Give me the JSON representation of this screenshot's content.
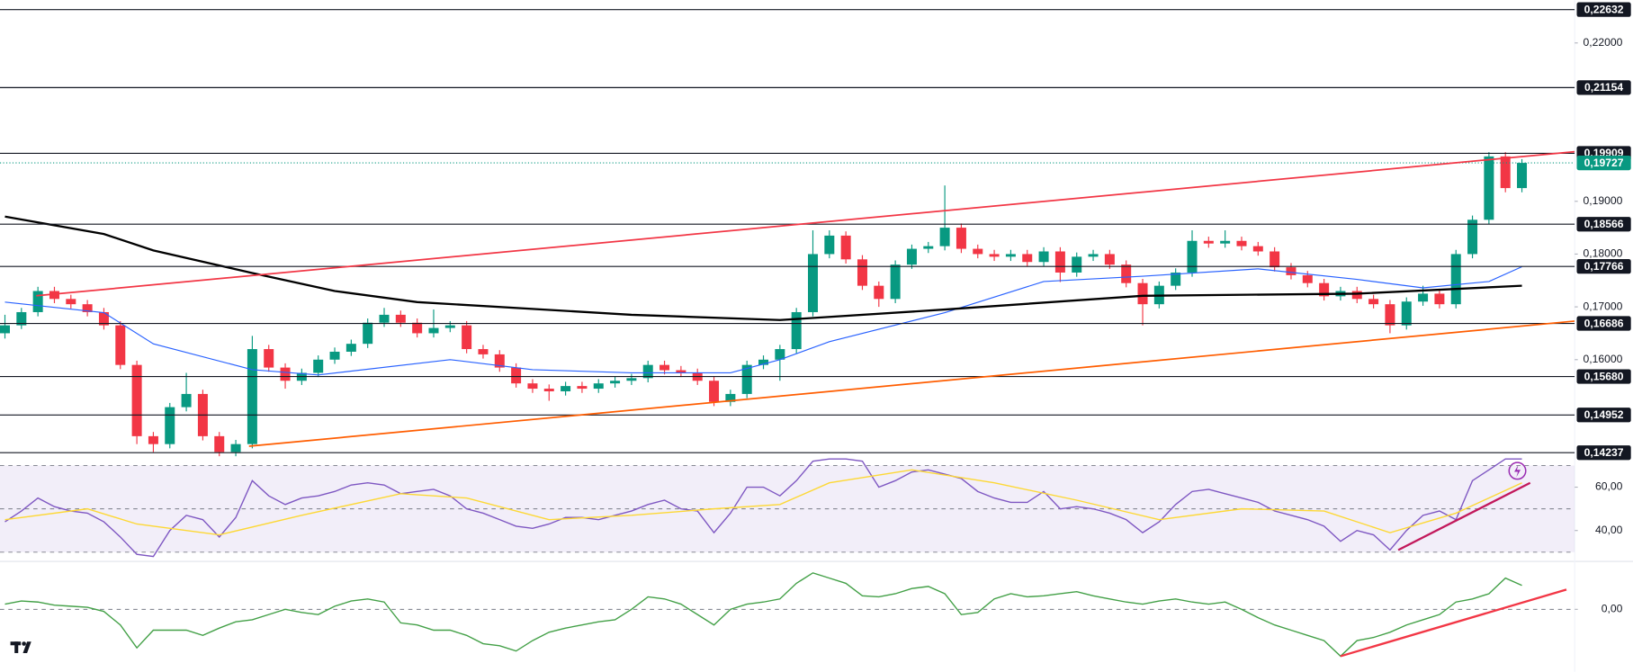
{
  "chart_data": [
    {
      "type": "candlestick",
      "xlim": [
        -0.3,
        95.2
      ],
      "ylim": [
        0.1413,
        0.2281
      ],
      "yticks": [
        {
          "value": 0.16,
          "label": "0,16000"
        },
        {
          "value": 0.17,
          "label": "0,17000"
        },
        {
          "value": 0.18,
          "label": "0,18000"
        },
        {
          "value": 0.19,
          "label": "0,19000"
        },
        {
          "value": 0.22,
          "label": "0,22000"
        }
      ],
      "up_color": "#089981",
      "down_color": "#f23645",
      "ohlc": [
        [
          0.165,
          0.1685,
          0.164,
          0.1665
        ],
        [
          0.1665,
          0.1698,
          0.1658,
          0.169
        ],
        [
          0.169,
          0.1738,
          0.1682,
          0.173
        ],
        [
          0.173,
          0.1738,
          0.1707,
          0.1715
        ],
        [
          0.1715,
          0.1723,
          0.1697,
          0.1705
        ],
        [
          0.1705,
          0.1713,
          0.1682,
          0.169
        ],
        [
          0.169,
          0.1698,
          0.1657,
          0.1665
        ],
        [
          0.1665,
          0.1673,
          0.1582,
          0.159
        ],
        [
          0.159,
          0.1598,
          0.144,
          0.1455
        ],
        [
          0.1455,
          0.1463,
          0.1425,
          0.144
        ],
        [
          0.144,
          0.1518,
          0.1432,
          0.151
        ],
        [
          0.151,
          0.1575,
          0.1502,
          0.1535
        ],
        [
          0.1535,
          0.1543,
          0.1447,
          0.1455
        ],
        [
          0.1455,
          0.1463,
          0.1417,
          0.1425
        ],
        [
          0.1425,
          0.1448,
          0.1417,
          0.144
        ],
        [
          0.144,
          0.1645,
          0.1432,
          0.162
        ],
        [
          0.162,
          0.1628,
          0.1577,
          0.1585
        ],
        [
          0.1585,
          0.1593,
          0.1545,
          0.156
        ],
        [
          0.156,
          0.1583,
          0.1552,
          0.1575
        ],
        [
          0.1575,
          0.1608,
          0.1567,
          0.16
        ],
        [
          0.16,
          0.1623,
          0.1592,
          0.1615
        ],
        [
          0.1615,
          0.1638,
          0.1607,
          0.163
        ],
        [
          0.163,
          0.1678,
          0.1622,
          0.167
        ],
        [
          0.167,
          0.1698,
          0.1662,
          0.1685
        ],
        [
          0.1685,
          0.1693,
          0.1662,
          0.167
        ],
        [
          0.167,
          0.1678,
          0.1642,
          0.165
        ],
        [
          0.165,
          0.1695,
          0.1642,
          0.166
        ],
        [
          0.166,
          0.1673,
          0.1652,
          0.1665
        ],
        [
          0.1665,
          0.1673,
          0.1612,
          0.162
        ],
        [
          0.162,
          0.1628,
          0.1602,
          0.161
        ],
        [
          0.161,
          0.1618,
          0.1577,
          0.1585
        ],
        [
          0.1585,
          0.1593,
          0.1547,
          0.1555
        ],
        [
          0.1555,
          0.1563,
          0.1537,
          0.1545
        ],
        [
          0.1545,
          0.1553,
          0.1522,
          0.154
        ],
        [
          0.154,
          0.1558,
          0.1532,
          0.155
        ],
        [
          0.155,
          0.1558,
          0.1537,
          0.1545
        ],
        [
          0.1545,
          0.1563,
          0.1537,
          0.1555
        ],
        [
          0.1555,
          0.1568,
          0.1547,
          0.156
        ],
        [
          0.156,
          0.1573,
          0.1552,
          0.1565
        ],
        [
          0.1565,
          0.1598,
          0.1557,
          0.159
        ],
        [
          0.159,
          0.1598,
          0.1572,
          0.158
        ],
        [
          0.158,
          0.1588,
          0.1567,
          0.1575
        ],
        [
          0.1575,
          0.1583,
          0.1552,
          0.156
        ],
        [
          0.156,
          0.1568,
          0.1512,
          0.152
        ],
        [
          0.152,
          0.1543,
          0.1512,
          0.1535
        ],
        [
          0.1535,
          0.1598,
          0.1527,
          0.159
        ],
        [
          0.159,
          0.1608,
          0.1582,
          0.16
        ],
        [
          0.16,
          0.1628,
          0.156,
          0.162
        ],
        [
          0.162,
          0.1698,
          0.1612,
          0.169
        ],
        [
          0.169,
          0.1845,
          0.1682,
          0.18
        ],
        [
          0.18,
          0.1845,
          0.1792,
          0.1835
        ],
        [
          0.1835,
          0.1843,
          0.1782,
          0.179
        ],
        [
          0.179,
          0.1798,
          0.1732,
          0.174
        ],
        [
          0.174,
          0.1748,
          0.17,
          0.1715
        ],
        [
          0.1715,
          0.1788,
          0.1707,
          0.178
        ],
        [
          0.178,
          0.1818,
          0.1772,
          0.181
        ],
        [
          0.181,
          0.1823,
          0.1802,
          0.1815
        ],
        [
          0.1815,
          0.193,
          0.1807,
          0.185
        ],
        [
          0.185,
          0.1858,
          0.1802,
          0.181
        ],
        [
          0.181,
          0.1818,
          0.1792,
          0.18
        ],
        [
          0.18,
          0.1808,
          0.1787,
          0.1795
        ],
        [
          0.1795,
          0.1808,
          0.1787,
          0.18
        ],
        [
          0.18,
          0.1808,
          0.1777,
          0.1785
        ],
        [
          0.1785,
          0.1813,
          0.1777,
          0.1805
        ],
        [
          0.1805,
          0.1813,
          0.1747,
          0.1765
        ],
        [
          0.1765,
          0.1803,
          0.1757,
          0.1795
        ],
        [
          0.1795,
          0.1808,
          0.1787,
          0.18
        ],
        [
          0.18,
          0.1808,
          0.1772,
          0.178
        ],
        [
          0.178,
          0.1788,
          0.1737,
          0.1745
        ],
        [
          0.1745,
          0.1753,
          0.1665,
          0.1705
        ],
        [
          0.1705,
          0.1748,
          0.1697,
          0.174
        ],
        [
          0.174,
          0.1773,
          0.1732,
          0.1765
        ],
        [
          0.1765,
          0.1845,
          0.1757,
          0.1825
        ],
        [
          0.1825,
          0.1833,
          0.1812,
          0.182
        ],
        [
          0.182,
          0.1845,
          0.1812,
          0.1825
        ],
        [
          0.1825,
          0.1833,
          0.1807,
          0.1815
        ],
        [
          0.1815,
          0.1823,
          0.1797,
          0.1805
        ],
        [
          0.1805,
          0.1813,
          0.1767,
          0.1775
        ],
        [
          0.1775,
          0.1783,
          0.1752,
          0.176
        ],
        [
          0.176,
          0.1768,
          0.1737,
          0.1745
        ],
        [
          0.1745,
          0.1753,
          0.1712,
          0.172
        ],
        [
          0.172,
          0.1738,
          0.1712,
          0.173
        ],
        [
          0.173,
          0.1738,
          0.1707,
          0.1715
        ],
        [
          0.1715,
          0.1723,
          0.1697,
          0.1705
        ],
        [
          0.1705,
          0.1713,
          0.165,
          0.1665
        ],
        [
          0.1665,
          0.1718,
          0.1657,
          0.171
        ],
        [
          0.171,
          0.174,
          0.1702,
          0.1725
        ],
        [
          0.1725,
          0.1733,
          0.1697,
          0.1705
        ],
        [
          0.1705,
          0.1808,
          0.1697,
          0.18
        ],
        [
          0.18,
          0.1873,
          0.1792,
          0.1865
        ],
        [
          0.1865,
          0.1993,
          0.1857,
          0.1985
        ],
        [
          0.1985,
          0.1993,
          0.1917,
          0.1925
        ],
        [
          0.1925,
          0.198,
          0.1917,
          0.19727
        ]
      ],
      "lines": [
        {
          "color": "#2962ff",
          "x": [
            0,
            6,
            9,
            15,
            19,
            27,
            32,
            38,
            44,
            47,
            50,
            57,
            63,
            69,
            76,
            82,
            86,
            90,
            92
          ],
          "values": [
            0.1709,
            0.1689,
            0.163,
            0.1581,
            0.1571,
            0.16,
            0.1581,
            0.1575,
            0.1575,
            0.16,
            0.1634,
            0.1689,
            0.1748,
            0.1758,
            0.1772,
            0.1752,
            0.1736,
            0.1748,
            0.1776
          ]
        },
        {
          "color": "#000000",
          "x": [
            0,
            6,
            9,
            15,
            20,
            25,
            38,
            47,
            57,
            69,
            82,
            92
          ],
          "values": [
            0.1871,
            0.1838,
            0.1807,
            0.1764,
            0.173,
            0.1709,
            0.1685,
            0.1675,
            0.1695,
            0.1721,
            0.1725,
            0.174
          ]
        }
      ],
      "trendlines": [
        {
          "color": "#f23645",
          "x": [
            1.9,
            95.2
          ],
          "values": [
            0.1721,
            0.1994
          ]
        },
        {
          "color": "#ff5d00",
          "x": [
            14.8,
            95.2
          ],
          "values": [
            0.1436,
            0.1673
          ]
        }
      ],
      "levels": [
        {
          "value": 0.22632,
          "label": "0,22632"
        },
        {
          "value": 0.21154,
          "label": "0,21154"
        },
        {
          "value": 0.19909,
          "label": "0,19909"
        },
        {
          "value": 0.18566,
          "label": "0,18566"
        },
        {
          "value": 0.17766,
          "label": "0,17766"
        },
        {
          "value": 0.16686,
          "label": "0,16686"
        },
        {
          "value": 0.1568,
          "label": "0,15680"
        },
        {
          "value": 0.14952,
          "label": "0,14952"
        },
        {
          "value": 0.14237,
          "label": "0,14237"
        }
      ],
      "level_color": "#131722",
      "last_price": {
        "value": 0.19727,
        "label": "0,19727",
        "color": "#089981"
      }
    },
    {
      "type": "line",
      "xlim": [
        -0.3,
        95.2
      ],
      "ylim": [
        26.2,
        73.3
      ],
      "yticks": [
        {
          "value": 60,
          "label": "60,00"
        },
        {
          "value": 40,
          "label": "40,00"
        }
      ],
      "hlines": [
        70,
        50,
        30
      ],
      "band_color": "#7e57c2",
      "series": [
        {
          "color": "#7e57c2",
          "values": [
            44,
            49,
            55,
            51,
            49,
            48,
            44,
            37,
            29,
            28,
            40,
            47,
            45,
            37,
            46,
            63,
            56,
            52,
            55,
            56,
            58,
            61,
            62,
            61,
            57,
            58,
            59,
            56,
            50,
            48,
            45,
            42,
            41,
            43,
            46,
            46,
            45,
            47,
            49,
            52,
            54,
            50,
            49,
            39,
            48,
            60,
            60,
            56,
            63,
            72,
            73,
            73,
            72,
            60,
            63,
            67,
            68,
            66,
            64,
            58,
            55,
            53,
            53,
            58,
            50,
            51,
            50,
            48,
            45,
            39,
            44,
            52,
            58,
            59,
            57,
            55,
            53,
            49,
            47,
            45,
            42,
            35,
            40,
            38,
            31,
            40,
            47,
            49,
            45,
            63,
            68,
            73,
            73
          ]
        },
        {
          "color": "#fdd835",
          "x": [
            0,
            5,
            8,
            13,
            18,
            24,
            28,
            33,
            38,
            43,
            47,
            50,
            55,
            60,
            65,
            70,
            75,
            80,
            84,
            88,
            92
          ],
          "values": [
            45,
            50,
            43,
            38,
            47,
            57,
            55,
            45,
            47,
            50,
            52,
            62,
            68,
            62,
            54,
            45,
            50,
            49,
            39,
            48,
            62
          ]
        }
      ],
      "trendlines": [
        {
          "color": "#c2185b",
          "x": [
            84.5,
            92.5
          ],
          "values": [
            31,
            62
          ]
        }
      ]
    },
    {
      "type": "line",
      "xlim": [
        -0.3,
        95.2
      ],
      "ylim": [
        -0.06,
        0.045
      ],
      "yticks": [
        {
          "value": 0,
          "label": "0,00"
        }
      ],
      "hlines": [
        0
      ],
      "series": [
        {
          "color": "#43a047",
          "values": [
            0.005,
            0.008,
            0.007,
            0.004,
            0.003,
            0.002,
            -0.002,
            -0.015,
            -0.037,
            -0.02,
            -0.02,
            -0.02,
            -0.025,
            -0.018,
            -0.012,
            -0.01,
            -0.005,
            0,
            -0.003,
            -0.005,
            0.003,
            0.008,
            0.01,
            0.007,
            -0.013,
            -0.015,
            -0.02,
            -0.02,
            -0.025,
            -0.033,
            -0.035,
            -0.04,
            -0.03,
            -0.022,
            -0.018,
            -0.015,
            -0.012,
            -0.01,
            0,
            0.012,
            0.01,
            0.005,
            -0.005,
            -0.015,
            0,
            0.005,
            0.007,
            0.01,
            0.025,
            0.035,
            0.03,
            0.025,
            0.013,
            0.012,
            0.015,
            0.02,
            0.022,
            0.015,
            -0.005,
            -0.003,
            0.01,
            0.015,
            0.012,
            0.013,
            0.015,
            0.017,
            0.013,
            0.01,
            0.007,
            0.005,
            0.008,
            0.01,
            0.007,
            0.005,
            0.007,
            0,
            -0.008,
            -0.015,
            -0.02,
            -0.025,
            -0.03,
            -0.045,
            -0.03,
            -0.027,
            -0.022,
            -0.015,
            -0.01,
            -0.005,
            0.007,
            0.01,
            0.015,
            0.03,
            0.023
          ]
        }
      ],
      "trendlines": [
        {
          "color": "#f23645",
          "x": [
            81,
            94.7
          ],
          "values": [
            -0.045,
            0.019
          ]
        }
      ]
    }
  ]
}
